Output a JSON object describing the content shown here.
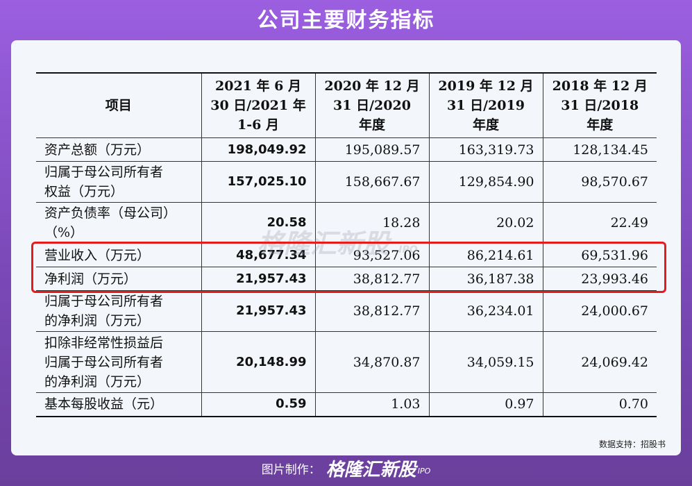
{
  "page": {
    "title": "公司主要财务指标",
    "footer_label": "图片制作：",
    "footer_brand": "格隆汇新股",
    "footer_ipo": "IPO",
    "source": "数据支持：招股书",
    "watermark": "格隆汇新股",
    "watermark_ipo": "IPO"
  },
  "table": {
    "headers": [
      "项目",
      "2021 年 6 月\n30 日/2021 年\n1-6 月",
      "2020 年 12 月\n31 日/2020\n年度",
      "2019 年 12 月\n31 日/2019\n年度",
      "2018 年 12 月\n31 日/2018\n年度"
    ],
    "rows": [
      {
        "label": "资产总额（万元）",
        "values": [
          "198,049.92",
          "195,089.57",
          "163,319.73",
          "128,134.45"
        ]
      },
      {
        "label": "归属于母公司所有者\n权益（万元）",
        "values": [
          "157,025.10",
          "158,667.67",
          "129,854.90",
          "98,570.67"
        ]
      },
      {
        "label": "资产负债率（母公司）\n（%）",
        "values": [
          "20.58",
          "18.28",
          "20.02",
          "22.49"
        ]
      },
      {
        "label": "营业收入（万元）",
        "values": [
          "48,677.34",
          "93,527.06",
          "86,214.61",
          "69,531.96"
        ]
      },
      {
        "label": "净利润（万元）",
        "values": [
          "21,957.43",
          "38,812.77",
          "36,187.38",
          "23,993.46"
        ]
      },
      {
        "label": "归属于母公司所有者\n的净利润（万元）",
        "values": [
          "21,957.43",
          "38,812.77",
          "36,234.01",
          "24,000.67"
        ]
      },
      {
        "label": "扣除非经常性损益后\n归属于母公司所有者\n的净利润（万元）",
        "values": [
          "20,148.99",
          "34,870.87",
          "34,059.15",
          "24,069.42"
        ]
      },
      {
        "label": "基本每股收益（元）",
        "values": [
          "0.59",
          "1.03",
          "0.97",
          "0.70"
        ]
      }
    ]
  },
  "colors": {
    "highlight": "#e51c1c",
    "background_top": "#9b5fe0",
    "card": "#f3f6fa"
  }
}
